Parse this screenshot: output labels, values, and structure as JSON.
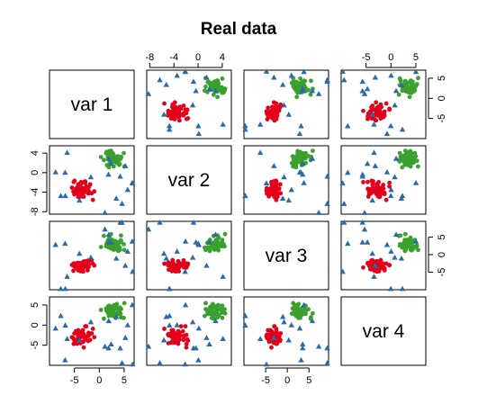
{
  "chart_data": {
    "type": "scatter",
    "subtype": "pairs-matrix",
    "title": "Real data",
    "variables": [
      "var 1",
      "var 2",
      "var 3",
      "var 4"
    ],
    "axis_limits": {
      "var 1": [
        -10,
        7
      ],
      "var 2": [
        -8.5,
        5.5
      ],
      "var 3": [
        -10,
        9.5
      ],
      "var 4": [
        -10,
        7
      ]
    },
    "ticks": {
      "var 1": [
        "-5",
        "0",
        "5"
      ],
      "var 2": [
        "-8",
        "-4",
        "0",
        "4"
      ],
      "var 3": [
        "-5",
        "0",
        "5"
      ],
      "var 4": [
        "-5",
        "0",
        "5"
      ]
    },
    "tick_values": {
      "var 1": [
        -5,
        0,
        5
      ],
      "var 2": [
        -8,
        -4,
        0,
        4
      ],
      "var 3": [
        -5,
        0,
        5
      ],
      "var 4": [
        -5,
        0,
        5
      ]
    },
    "groups": [
      {
        "color": "#e2001a",
        "marker": "circle",
        "n": 55,
        "center": [
          -3.5,
          -3.5,
          -3.0,
          -3.0
        ],
        "spread": [
          0.9,
          0.9,
          1.0,
          1.0
        ]
      },
      {
        "color": "#3aa02e",
        "marker": "circle",
        "n": 55,
        "center": [
          3.0,
          3.0,
          3.0,
          3.5
        ],
        "spread": [
          1.0,
          0.9,
          1.0,
          1.0
        ]
      },
      {
        "color": "#2c6aa5",
        "marker": "triangle",
        "n": 18,
        "center": [
          0,
          -1,
          0,
          0
        ],
        "spread": [
          5.5,
          4.5,
          6.0,
          5.5
        ]
      }
    ],
    "grid": false,
    "legend": "none"
  }
}
